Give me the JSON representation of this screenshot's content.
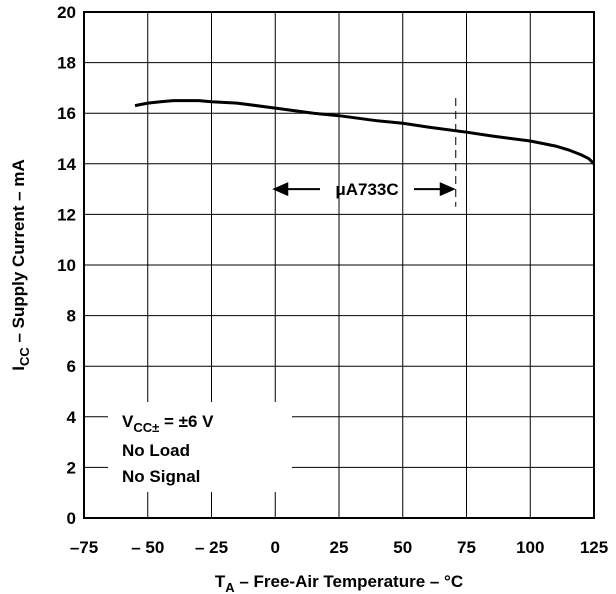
{
  "chart_data": {
    "type": "line",
    "xlabel": "T",
    "xlabel_sub": "A",
    "xlabel_rest": " – Free-Air Temperature – °C",
    "ylabel": "I",
    "ylabel_sub": "CC",
    "ylabel_rest": " – Supply Current – mA",
    "xlim": [
      -75,
      125
    ],
    "ylim": [
      0,
      20
    ],
    "x_ticks": [
      -75,
      -50,
      -25,
      0,
      25,
      50,
      75,
      100,
      125
    ],
    "x_tick_labels": [
      "–75",
      "– 50",
      "– 25",
      "0",
      "25",
      "50",
      "75",
      "100",
      "125"
    ],
    "y_ticks": [
      0,
      2,
      4,
      6,
      8,
      10,
      12,
      14,
      16,
      18,
      20
    ],
    "y_tick_labels": [
      "0",
      "2",
      "4",
      "6",
      "8",
      "10",
      "12",
      "14",
      "16",
      "18",
      "20"
    ],
    "grid": true,
    "series": [
      {
        "x": [
          -55,
          -50,
          -45,
          -40,
          -30,
          -25,
          -15,
          0,
          15,
          25,
          40,
          50,
          60,
          75,
          85,
          100,
          110,
          115,
          120,
          123,
          125
        ],
        "y": [
          16.3,
          16.4,
          16.45,
          16.5,
          16.5,
          16.45,
          16.4,
          16.2,
          16.0,
          15.9,
          15.7,
          15.6,
          15.45,
          15.25,
          15.1,
          14.9,
          14.7,
          14.55,
          14.35,
          14.2,
          14.0
        ]
      }
    ],
    "range_marker": {
      "label": "μA733C",
      "x_end": 70,
      "y": 13
    },
    "conditions": {
      "line1_main": "V",
      "line1_sub": "CC±",
      "line1_rest": " = ±6 V",
      "line2": "No Load",
      "line3": "No Signal"
    }
  }
}
